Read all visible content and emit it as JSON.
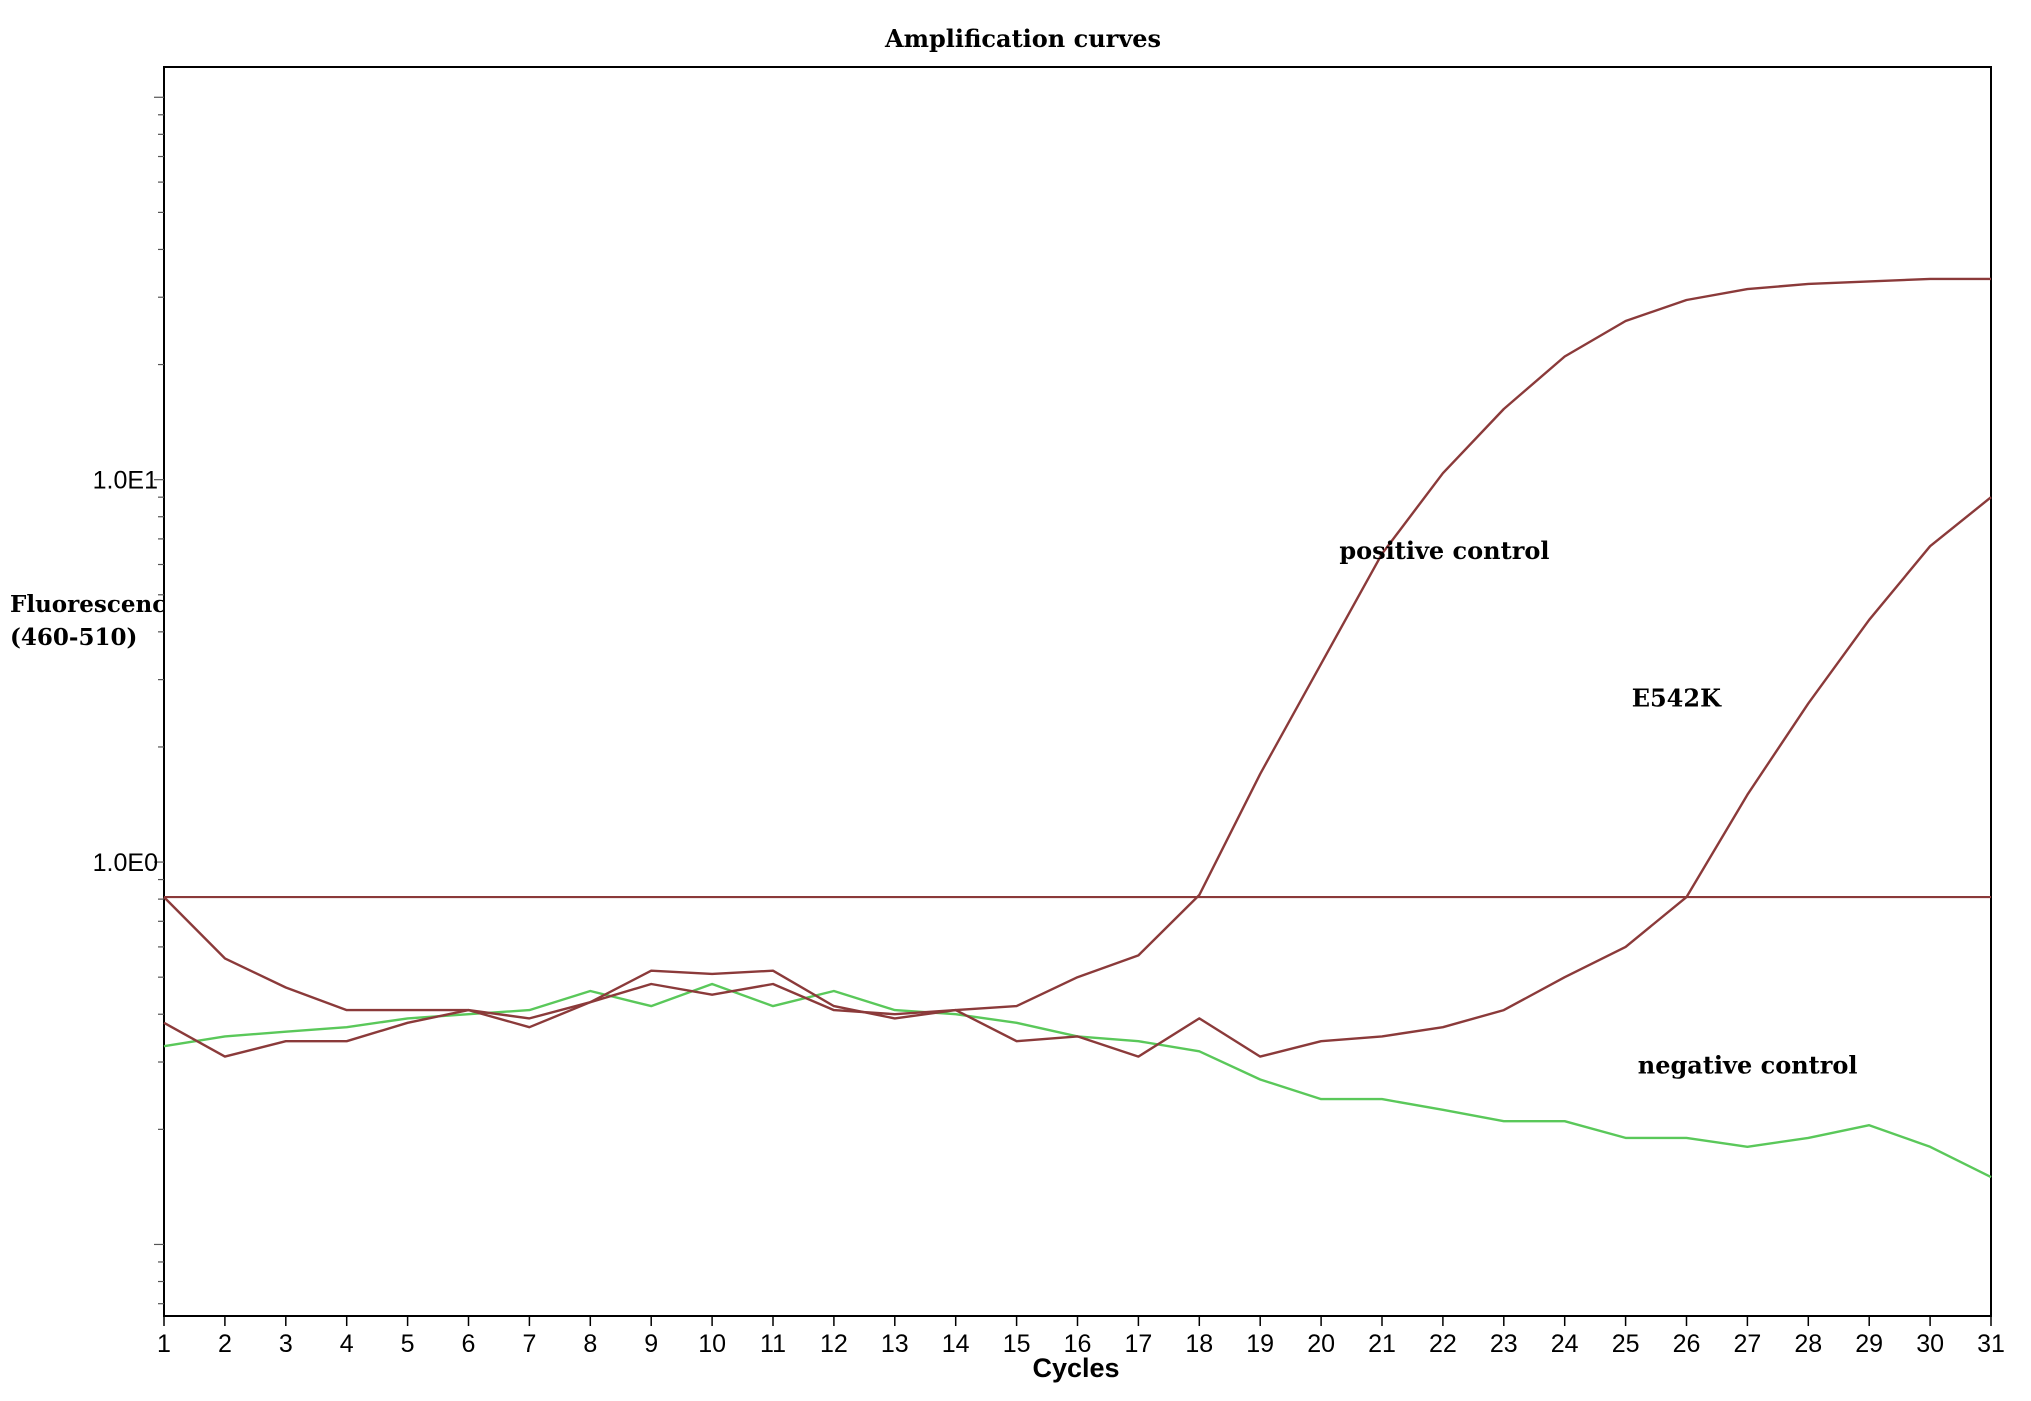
{
  "chart_data": {
    "type": "line",
    "title": "Amplification curves",
    "xlabel": "Cycles",
    "ylabel": [
      "Fluorescence",
      "(460-510)"
    ],
    "y_scale": "log",
    "x_ticks": [
      1,
      2,
      3,
      4,
      5,
      6,
      7,
      8,
      9,
      10,
      11,
      12,
      13,
      14,
      15,
      16,
      17,
      18,
      19,
      20,
      21,
      22,
      23,
      24,
      25,
      26,
      27,
      28,
      29,
      30,
      31
    ],
    "y_ticks": [
      {
        "value": 1,
        "label": "1.0E0"
      },
      {
        "value": 10,
        "label": "1.0E1"
      }
    ],
    "xlim": [
      1,
      31
    ],
    "ylim": [
      0.065,
      120
    ],
    "grid": false,
    "threshold": 0.81,
    "series": [
      {
        "name": "positive control",
        "color": "#8b3a3a",
        "x": [
          1,
          2,
          3,
          4,
          5,
          6,
          7,
          8,
          9,
          10,
          11,
          12,
          13,
          14,
          15,
          16,
          17,
          18,
          19,
          20,
          21,
          22,
          23,
          24,
          25,
          26,
          27,
          28,
          29,
          30,
          31
        ],
        "y": [
          0.81,
          0.56,
          0.47,
          0.41,
          0.41,
          0.41,
          0.37,
          0.43,
          0.52,
          0.51,
          0.52,
          0.42,
          0.39,
          0.41,
          0.42,
          0.5,
          0.57,
          0.82,
          1.7,
          3.3,
          6.4,
          10.4,
          15.3,
          21.0,
          26.0,
          29.5,
          31.5,
          32.5,
          33.0,
          33.5,
          33.5
        ]
      },
      {
        "name": "E542K",
        "color": "#8b3a3a",
        "x": [
          1,
          2,
          3,
          4,
          5,
          6,
          7,
          8,
          9,
          10,
          11,
          12,
          13,
          14,
          15,
          16,
          17,
          18,
          19,
          20,
          21,
          22,
          23,
          24,
          25,
          26,
          27,
          28,
          29,
          30,
          31
        ],
        "y": [
          0.38,
          0.31,
          0.34,
          0.34,
          0.38,
          0.41,
          0.39,
          0.43,
          0.48,
          0.45,
          0.48,
          0.41,
          0.4,
          0.41,
          0.34,
          0.35,
          0.31,
          0.39,
          0.31,
          0.34,
          0.35,
          0.37,
          0.41,
          0.5,
          0.6,
          0.81,
          1.5,
          2.6,
          4.3,
          6.7,
          9.0
        ]
      },
      {
        "name": "negative control",
        "color": "#5ac85a",
        "x": [
          1,
          2,
          3,
          4,
          5,
          6,
          7,
          8,
          9,
          10,
          11,
          12,
          13,
          14,
          15,
          16,
          17,
          18,
          19,
          20,
          21,
          22,
          23,
          24,
          25,
          26,
          27,
          28,
          29,
          30,
          31
        ],
        "y": [
          0.33,
          0.35,
          0.36,
          0.37,
          0.39,
          0.4,
          0.41,
          0.46,
          0.42,
          0.48,
          0.42,
          0.46,
          0.41,
          0.4,
          0.38,
          0.35,
          0.34,
          0.32,
          0.27,
          0.24,
          0.24,
          0.225,
          0.21,
          0.21,
          0.19,
          0.19,
          0.18,
          0.19,
          0.205,
          0.18,
          0.15
        ]
      }
    ],
    "annotations": [
      {
        "text": "positive control",
        "x": 20.3,
        "y": 6.2
      },
      {
        "text": "E542K",
        "x": 25.1,
        "y": 2.55
      },
      {
        "text": "negative control",
        "x": 25.2,
        "y": 0.28
      }
    ]
  }
}
